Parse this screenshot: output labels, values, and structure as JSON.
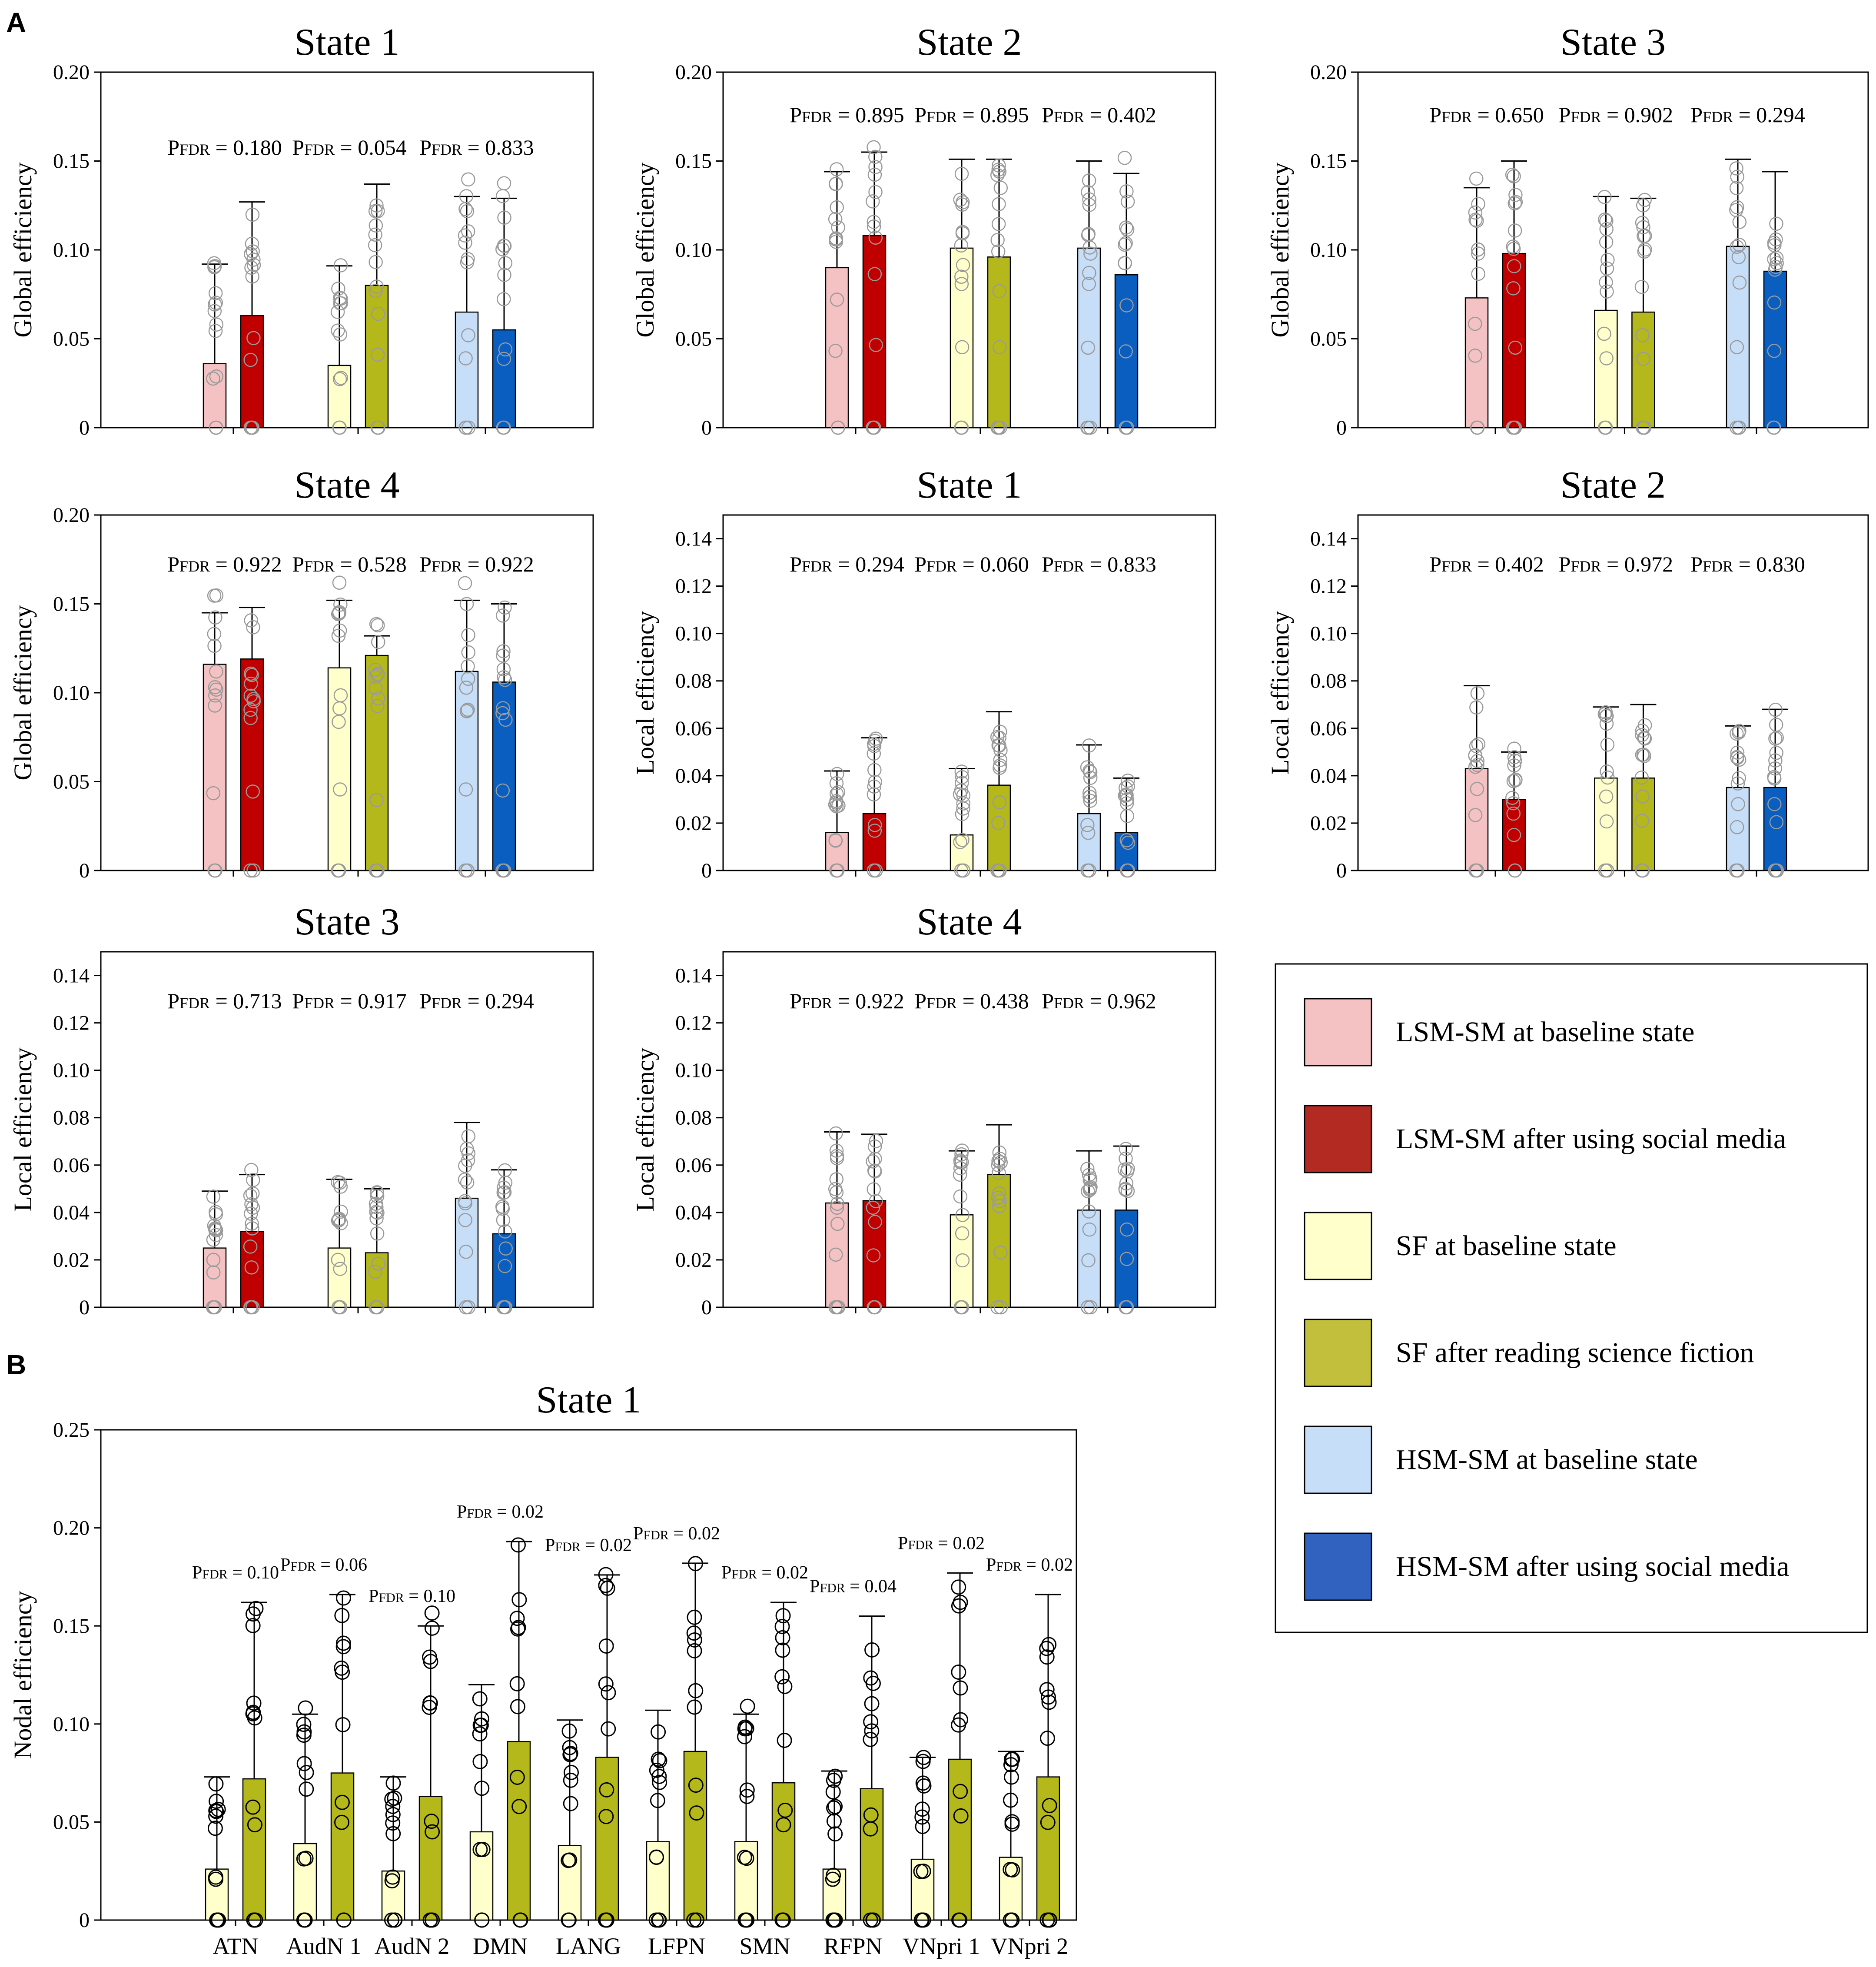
{
  "panel_labels": {
    "a": "A",
    "b": "B"
  },
  "colors": {
    "lsm_base": "#f4c2c2",
    "lsm_after": "#c00000",
    "sf_base": "#ffffcc",
    "sf_after": "#b5b81b",
    "hsm_base": "#c6def8",
    "hsm_after": "#0a5ec0"
  },
  "legend": [
    {
      "label": "LSM-SM at baseline state",
      "color": "#f4c2c2"
    },
    {
      "label": "LSM-SM after using social media",
      "color": "#b22a22"
    },
    {
      "label": "SF at baseline state",
      "color": "#ffffcc"
    },
    {
      "label": "SF after reading science fiction",
      "color": "#c2bf3c"
    },
    {
      "label": "HSM-SM at baseline state",
      "color": "#c6def8"
    },
    {
      "label": "HSM-SM after using social media",
      "color": "#3162bf"
    }
  ],
  "chart_data": [
    {
      "type": "bar",
      "title": "State 1",
      "ylabel": "Global efficiency",
      "ylim": [
        0,
        0.2
      ],
      "yticks": [
        "0",
        "0.05",
        "0.10",
        "0.15",
        "0.20"
      ],
      "groups": [
        "LSM-SM",
        "SF",
        "HSM-SM"
      ],
      "series": [
        {
          "name": "baseline",
          "values": [
            0.036,
            0.035,
            0.065
          ]
        },
        {
          "name": "after",
          "values": [
            0.063,
            0.08,
            0.055
          ]
        }
      ],
      "errors": [
        [
          0.092,
          0.127
        ],
        [
          0.091,
          0.137
        ],
        [
          0.13,
          0.129
        ]
      ],
      "pvalues": [
        "P",
        "P",
        "P"
      ],
      "psubs": [
        "FDR",
        "FDR",
        "FDR"
      ],
      "pnums": [
        " = 0.180",
        " = 0.054",
        " = 0.833"
      ]
    },
    {
      "type": "bar",
      "title": "State 2",
      "ylabel": "Global efficiency",
      "ylim": [
        0,
        0.2
      ],
      "yticks": [
        "0",
        "0.05",
        "0.10",
        "0.15",
        "0.20"
      ],
      "groups": [
        "LSM-SM",
        "SF",
        "HSM-SM"
      ],
      "series": [
        {
          "name": "baseline",
          "values": [
            0.09,
            0.101,
            0.101
          ]
        },
        {
          "name": "after",
          "values": [
            0.108,
            0.096,
            0.086
          ]
        }
      ],
      "errors": [
        [
          0.144,
          0.155
        ],
        [
          0.151,
          0.151
        ],
        [
          0.15,
          0.143
        ]
      ],
      "pvalues": [
        "P",
        "P",
        "P"
      ],
      "psubs": [
        "FDR",
        "FDR",
        "FDR"
      ],
      "pnums": [
        " = 0.895",
        " = 0.895",
        " = 0.402"
      ]
    },
    {
      "type": "bar",
      "title": "State 3",
      "ylabel": "Global efficiency",
      "ylim": [
        0,
        0.2
      ],
      "yticks": [
        "0",
        "0.05",
        "0.10",
        "0.15",
        "0.20"
      ],
      "groups": [
        "LSM-SM",
        "SF",
        "HSM-SM"
      ],
      "series": [
        {
          "name": "baseline",
          "values": [
            0.073,
            0.066,
            0.102
          ]
        },
        {
          "name": "after",
          "values": [
            0.098,
            0.065,
            0.088
          ]
        }
      ],
      "errors": [
        [
          0.135,
          0.15
        ],
        [
          0.13,
          0.129
        ],
        [
          0.151,
          0.144
        ]
      ],
      "pvalues": [
        "P",
        "P",
        "P"
      ],
      "psubs": [
        "FDR",
        "FDR",
        "FDR"
      ],
      "pnums": [
        " = 0.650",
        " = 0.902",
        " = 0.294"
      ]
    },
    {
      "type": "bar",
      "title": "State 4",
      "ylabel": "Global efficiency",
      "ylim": [
        0,
        0.2
      ],
      "yticks": [
        "0",
        "0.05",
        "0.10",
        "0.15",
        "0.20"
      ],
      "groups": [
        "LSM-SM",
        "SF",
        "HSM-SM"
      ],
      "series": [
        {
          "name": "baseline",
          "values": [
            0.116,
            0.114,
            0.112
          ]
        },
        {
          "name": "after",
          "values": [
            0.119,
            0.121,
            0.106
          ]
        }
      ],
      "errors": [
        [
          0.145,
          0.148
        ],
        [
          0.152,
          0.132
        ],
        [
          0.152,
          0.15
        ]
      ],
      "pvalues": [
        "P",
        "P",
        "P"
      ],
      "psubs": [
        "FDR",
        "FDR",
        "FDR"
      ],
      "pnums": [
        " = 0.922",
        " = 0.528",
        " = 0.922"
      ]
    },
    {
      "type": "bar",
      "title": "State 1",
      "ylabel": "Local efficiency",
      "ylim": [
        0,
        0.15
      ],
      "yticks": [
        "0",
        "0.02",
        "0.04",
        "0.06",
        "0.08",
        "0.10",
        "0.12",
        "0.14"
      ],
      "groups": [
        "LSM-SM",
        "SF",
        "HSM-SM"
      ],
      "series": [
        {
          "name": "baseline",
          "values": [
            0.016,
            0.015,
            0.024
          ]
        },
        {
          "name": "after",
          "values": [
            0.024,
            0.036,
            0.016
          ]
        }
      ],
      "errors": [
        [
          0.042,
          0.056
        ],
        [
          0.043,
          0.067
        ],
        [
          0.053,
          0.039
        ]
      ],
      "pvalues": [
        "P",
        "P",
        "P"
      ],
      "psubs": [
        "FDR",
        "FDR",
        "FDR"
      ],
      "pnums": [
        " = 0.294",
        " = 0.060",
        " = 0.833"
      ]
    },
    {
      "type": "bar",
      "title": "State 2",
      "ylabel": "Local efficiency",
      "ylim": [
        0,
        0.15
      ],
      "yticks": [
        "0",
        "0.02",
        "0.04",
        "0.06",
        "0.08",
        "0.10",
        "0.12",
        "0.14"
      ],
      "groups": [
        "LSM-SM",
        "SF",
        "HSM-SM"
      ],
      "series": [
        {
          "name": "baseline",
          "values": [
            0.043,
            0.039,
            0.035
          ]
        },
        {
          "name": "after",
          "values": [
            0.03,
            0.039,
            0.035
          ]
        }
      ],
      "errors": [
        [
          0.078,
          0.05
        ],
        [
          0.069,
          0.07
        ],
        [
          0.061,
          0.068
        ]
      ],
      "pvalues": [
        "P",
        "P",
        "P"
      ],
      "psubs": [
        "FDR",
        "FDR",
        "FDR"
      ],
      "pnums": [
        " = 0.402",
        " = 0.972",
        " = 0.830"
      ]
    },
    {
      "type": "bar",
      "title": "State 3",
      "ylabel": "Local efficiency",
      "ylim": [
        0,
        0.15
      ],
      "yticks": [
        "0",
        "0.02",
        "0.04",
        "0.06",
        "0.08",
        "0.10",
        "0.12",
        "0.14"
      ],
      "groups": [
        "LSM-SM",
        "SF",
        "HSM-SM"
      ],
      "series": [
        {
          "name": "baseline",
          "values": [
            0.025,
            0.025,
            0.046
          ]
        },
        {
          "name": "after",
          "values": [
            0.032,
            0.023,
            0.031
          ]
        }
      ],
      "errors": [
        [
          0.049,
          0.056
        ],
        [
          0.054,
          0.05
        ],
        [
          0.078,
          0.058
        ]
      ],
      "pvalues": [
        "P",
        "P",
        "P"
      ],
      "psubs": [
        "FDR",
        "FDR",
        "FDR"
      ],
      "pnums": [
        " = 0.713",
        " = 0.917",
        " = 0.294"
      ]
    },
    {
      "type": "bar",
      "title": "State 4",
      "ylabel": "Local efficiency",
      "ylim": [
        0,
        0.15
      ],
      "yticks": [
        "0",
        "0.02",
        "0.04",
        "0.06",
        "0.08",
        "0.10",
        "0.12",
        "0.14"
      ],
      "groups": [
        "LSM-SM",
        "SF",
        "HSM-SM"
      ],
      "series": [
        {
          "name": "baseline",
          "values": [
            0.044,
            0.039,
            0.041
          ]
        },
        {
          "name": "after",
          "values": [
            0.045,
            0.056,
            0.041
          ]
        }
      ],
      "errors": [
        [
          0.074,
          0.073
        ],
        [
          0.066,
          0.077
        ],
        [
          0.066,
          0.068
        ]
      ],
      "pvalues": [
        "P",
        "P",
        "P"
      ],
      "psubs": [
        "FDR",
        "FDR",
        "FDR"
      ],
      "pnums": [
        " = 0.922",
        " = 0.438",
        " = 0.962"
      ]
    },
    {
      "type": "bar",
      "title": "State 1",
      "ylabel": "Nodal efficiency",
      "ylim": [
        0,
        0.25
      ],
      "yticks": [
        "0",
        "0.05",
        "0.10",
        "0.15",
        "0.20",
        "0.25"
      ],
      "categories": [
        "ATN",
        "AudN 1",
        "AudN 2",
        "DMN",
        "LANG",
        "LFPN",
        "SMN",
        "RFPN",
        "VNpri 1",
        "VNpri 2"
      ],
      "series": [
        {
          "name": "SF at baseline state",
          "values": [
            0.026,
            0.039,
            0.025,
            0.045,
            0.038,
            0.04,
            0.04,
            0.026,
            0.031,
            0.032
          ]
        },
        {
          "name": "SF after reading science fiction",
          "values": [
            0.072,
            0.075,
            0.063,
            0.091,
            0.083,
            0.086,
            0.07,
            0.067,
            0.082,
            0.073
          ]
        }
      ],
      "errors": [
        [
          0.073,
          0.162
        ],
        [
          0.105,
          0.166
        ],
        [
          0.073,
          0.15
        ],
        [
          0.12,
          0.193
        ],
        [
          0.102,
          0.176
        ],
        [
          0.107,
          0.182
        ],
        [
          0.105,
          0.162
        ],
        [
          0.076,
          0.155
        ],
        [
          0.083,
          0.177
        ],
        [
          0.086,
          0.166
        ]
      ],
      "pvalues": [
        "P",
        "P",
        "P",
        "P",
        "P",
        "P",
        "P",
        "P",
        "P",
        "P"
      ],
      "psubs": [
        "FDR",
        "FDR",
        "FDR",
        "FDR",
        "FDR",
        "FDR",
        "FDR",
        "FDR",
        "FDR",
        "FDR"
      ],
      "pnums": [
        " = 0.10",
        " = 0.06",
        " = 0.10",
        " = 0.02",
        " = 0.02",
        " = 0.02",
        " = 0.02",
        " = 0.04",
        " = 0.02",
        " = 0.02"
      ]
    }
  ]
}
